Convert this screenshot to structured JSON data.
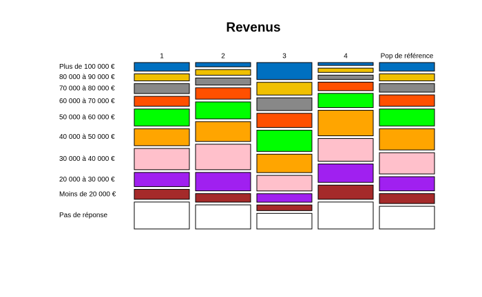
{
  "chart_data": {
    "type": "mosaic",
    "title": "Revenus",
    "categories": [
      "1",
      "2",
      "3",
      "4",
      "Pop de référence"
    ],
    "series": [
      {
        "name": "Plus de 100 000 €",
        "color": "#0070c0",
        "values": [
          6,
          3,
          12,
          2,
          6
        ]
      },
      {
        "name": "80 000 à 90 000 €",
        "color": "#f0c000",
        "values": [
          5,
          4,
          9,
          3,
          5
        ]
      },
      {
        "name": "70 000 à 80 000 €",
        "color": "#888888",
        "values": [
          7,
          5,
          9,
          3,
          6
        ]
      },
      {
        "name": "60 000 à 70 000 €",
        "color": "#ff5000",
        "values": [
          7,
          8,
          10,
          6,
          8
        ]
      },
      {
        "name": "50 000 à 60 000 €",
        "color": "#00ff00",
        "values": [
          12,
          12,
          15,
          10,
          12
        ]
      },
      {
        "name": "40 000 à 50 000 €",
        "color": "#ffa500",
        "values": [
          12,
          14,
          13,
          18,
          15
        ]
      },
      {
        "name": "30 000 à 40 000 €",
        "color": "#ffc0cb",
        "values": [
          15,
          18,
          11,
          16,
          15
        ]
      },
      {
        "name": "20 000 à 30 000 €",
        "color": "#a020f0",
        "values": [
          10,
          13,
          6,
          13,
          10
        ]
      },
      {
        "name": "Moins de 20 000 €",
        "color": "#a52a2a",
        "values": [
          7,
          6,
          4,
          10,
          7
        ]
      },
      {
        "name": "Pas de réponse",
        "color": "#ffffff",
        "values": [
          19,
          17,
          11,
          19,
          16
        ]
      }
    ]
  }
}
